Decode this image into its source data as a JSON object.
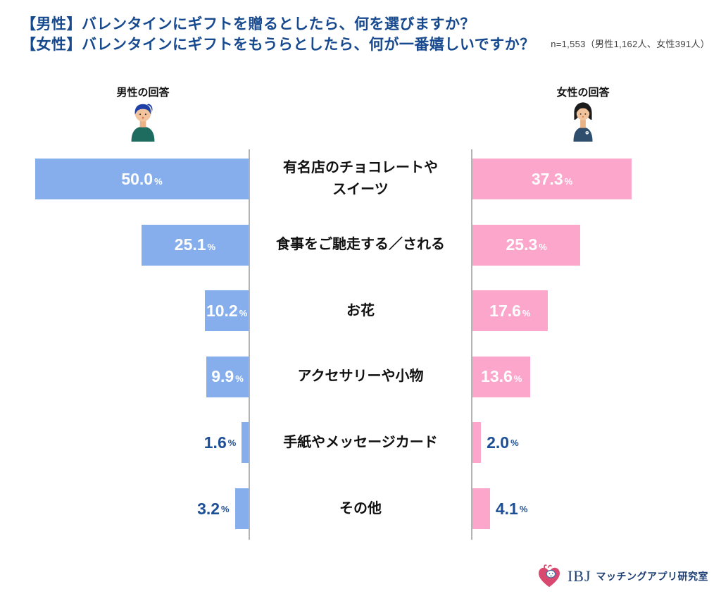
{
  "header": {
    "title_line1": "【男性】バレンタインにギフトを贈るとしたら、何を選びますか？",
    "title_line2": "【女性】バレンタインにギフトをもうらとしたら、何が一番嬉しいですか？",
    "sample_note": "n=1,553（男性1,162人、女性391人）"
  },
  "columns": {
    "male_label": "男性の回答",
    "female_label": "女性の回答"
  },
  "chart_data": {
    "type": "bar",
    "orientation": "bidirectional-horizontal",
    "categories": [
      "有名店のチョコレートや\nスイーツ",
      "食事をご馳走する／される",
      "お花",
      "アクセサリーや小物",
      "手紙やメッセージカード",
      "その他"
    ],
    "series": [
      {
        "name": "男性",
        "color": "#87AEEC",
        "values": [
          50.0,
          25.1,
          10.2,
          9.9,
          1.6,
          3.2
        ]
      },
      {
        "name": "女性",
        "color": "#FCA6CC",
        "values": [
          37.3,
          25.3,
          17.6,
          13.6,
          2.0,
          4.1
        ]
      }
    ],
    "unit": "%",
    "xlim": [
      0,
      50
    ],
    "value_label_inside_color": "#ffffff",
    "value_label_outside_color": "#1D4F96",
    "grid": false,
    "legend_position": "top-as-avatars"
  },
  "footer": {
    "brand": "IBJ",
    "brand_suffix": "マッチングアプリ研究室"
  },
  "colors": {
    "title_navy": "#17498F",
    "male_bar": "#87AEEC",
    "female_bar": "#FCA6CC",
    "axis_gray": "#b3b3b3",
    "brand_navy": "#1D3E73",
    "heart_red": "#D9496F"
  }
}
